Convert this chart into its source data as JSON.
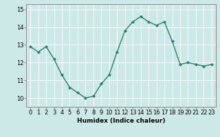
{
  "x": [
    0,
    1,
    2,
    3,
    4,
    5,
    6,
    7,
    8,
    9,
    10,
    11,
    12,
    13,
    14,
    15,
    16,
    17,
    18,
    19,
    20,
    21,
    22,
    23
  ],
  "y": [
    12.9,
    12.6,
    12.9,
    12.2,
    11.3,
    10.6,
    10.3,
    10.0,
    10.1,
    10.8,
    11.3,
    12.6,
    13.8,
    14.3,
    14.6,
    14.3,
    14.1,
    14.3,
    13.2,
    11.9,
    12.0,
    11.9,
    11.8,
    11.9
  ],
  "line_color": "#2d7a6e",
  "marker": "D",
  "marker_size": 2.2,
  "bg_color": "#cce9e8",
  "grid_color": "#ffffff",
  "xlabel": "Humidex (Indice chaleur)",
  "ylim": [
    9.5,
    15.3
  ],
  "xlim": [
    -0.5,
    23.5
  ],
  "yticks": [
    10,
    11,
    12,
    13,
    14,
    15
  ],
  "xticks": [
    0,
    1,
    2,
    3,
    4,
    5,
    6,
    7,
    8,
    9,
    10,
    11,
    12,
    13,
    14,
    15,
    16,
    17,
    18,
    19,
    20,
    21,
    22,
    23
  ],
  "xlabel_fontsize": 6.5,
  "tick_fontsize": 6.0,
  "line_width": 1.0,
  "spine_color": "#888888"
}
